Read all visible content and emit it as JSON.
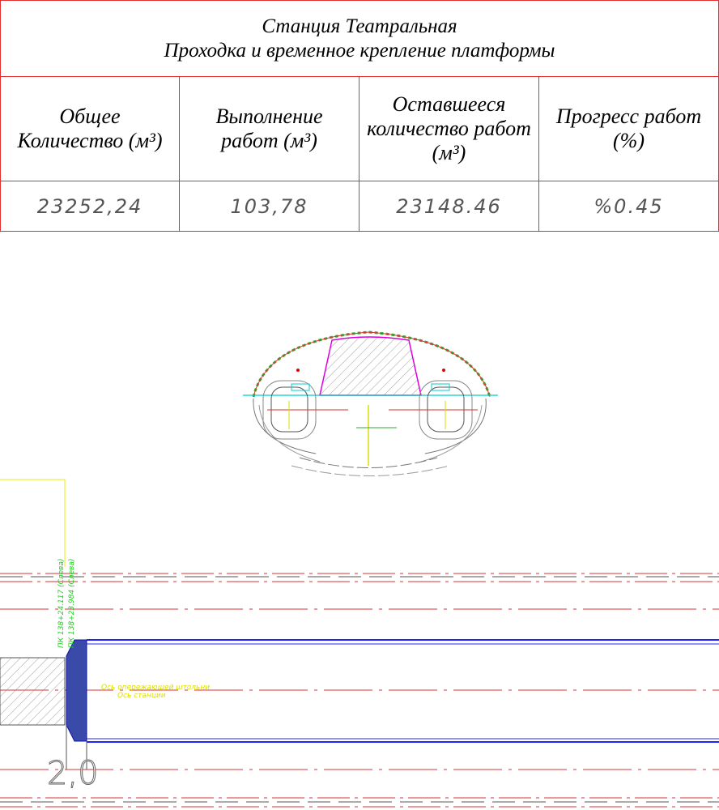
{
  "header": {
    "title": [
      "Станция Театральная",
      "Проходка и временное крепление платформы"
    ]
  },
  "table": {
    "columns": [
      [
        "Общее",
        "Количество (м³)"
      ],
      [
        "Выполнение",
        "работ (м³)"
      ],
      [
        "Оставшееся",
        "количество работ",
        "(м³)"
      ],
      [
        "Прогресс работ",
        "(%)"
      ]
    ],
    "rows": [
      [
        "23252,24",
        "103,78",
        "23148.46",
        "%0.45"
      ]
    ]
  },
  "drawing": {
    "chainage_labels": [
      "ПК 138+24.117 (Слева)",
      "ПК 138+23.984 (Слева)"
    ],
    "axis_labels": [
      "Ось опережающей штольни",
      "Ось станции"
    ],
    "dimension": "2,0"
  }
}
